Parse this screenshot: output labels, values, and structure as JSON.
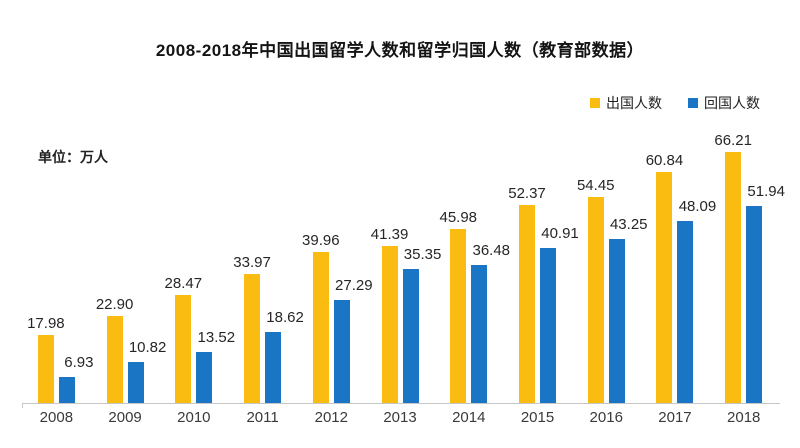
{
  "title": "2008-2018年中国出国留学人数和留学归国人数（教育部数据）",
  "unit_label": "单位：万人",
  "legend": [
    {
      "label": "出国人数",
      "color": "#FBBC12"
    },
    {
      "label": "回国人数",
      "color": "#1B75C5"
    }
  ],
  "colors": {
    "abroad_bar": "#FBBC12",
    "return_bar": "#1B75C5",
    "axis_line": "#C6C6C6",
    "label_text": "#262626"
  },
  "chart_data": {
    "type": "bar",
    "title": "2008-2018年中国出国留学人数和留学归国人数（教育部数据）",
    "unit": "万人",
    "categories": [
      "2008",
      "2009",
      "2010",
      "2011",
      "2012",
      "2013",
      "2014",
      "2015",
      "2016",
      "2017",
      "2018"
    ],
    "series": [
      {
        "name": "出国人数",
        "color": "#FBBC12",
        "values": [
          17.98,
          22.9,
          28.47,
          33.97,
          39.96,
          41.39,
          45.98,
          52.37,
          54.45,
          60.84,
          66.21
        ]
      },
      {
        "name": "回国人数",
        "color": "#1B75C5",
        "values": [
          6.93,
          10.82,
          13.52,
          18.62,
          27.29,
          35.35,
          36.48,
          40.91,
          43.25,
          48.09,
          51.94
        ]
      }
    ],
    "ylim": [
      0,
      70
    ],
    "grid": false,
    "data_labels": true,
    "data_label_decimals": 2,
    "legend_position": "top-right",
    "xlabel": "",
    "ylabel": "单位：万人"
  }
}
